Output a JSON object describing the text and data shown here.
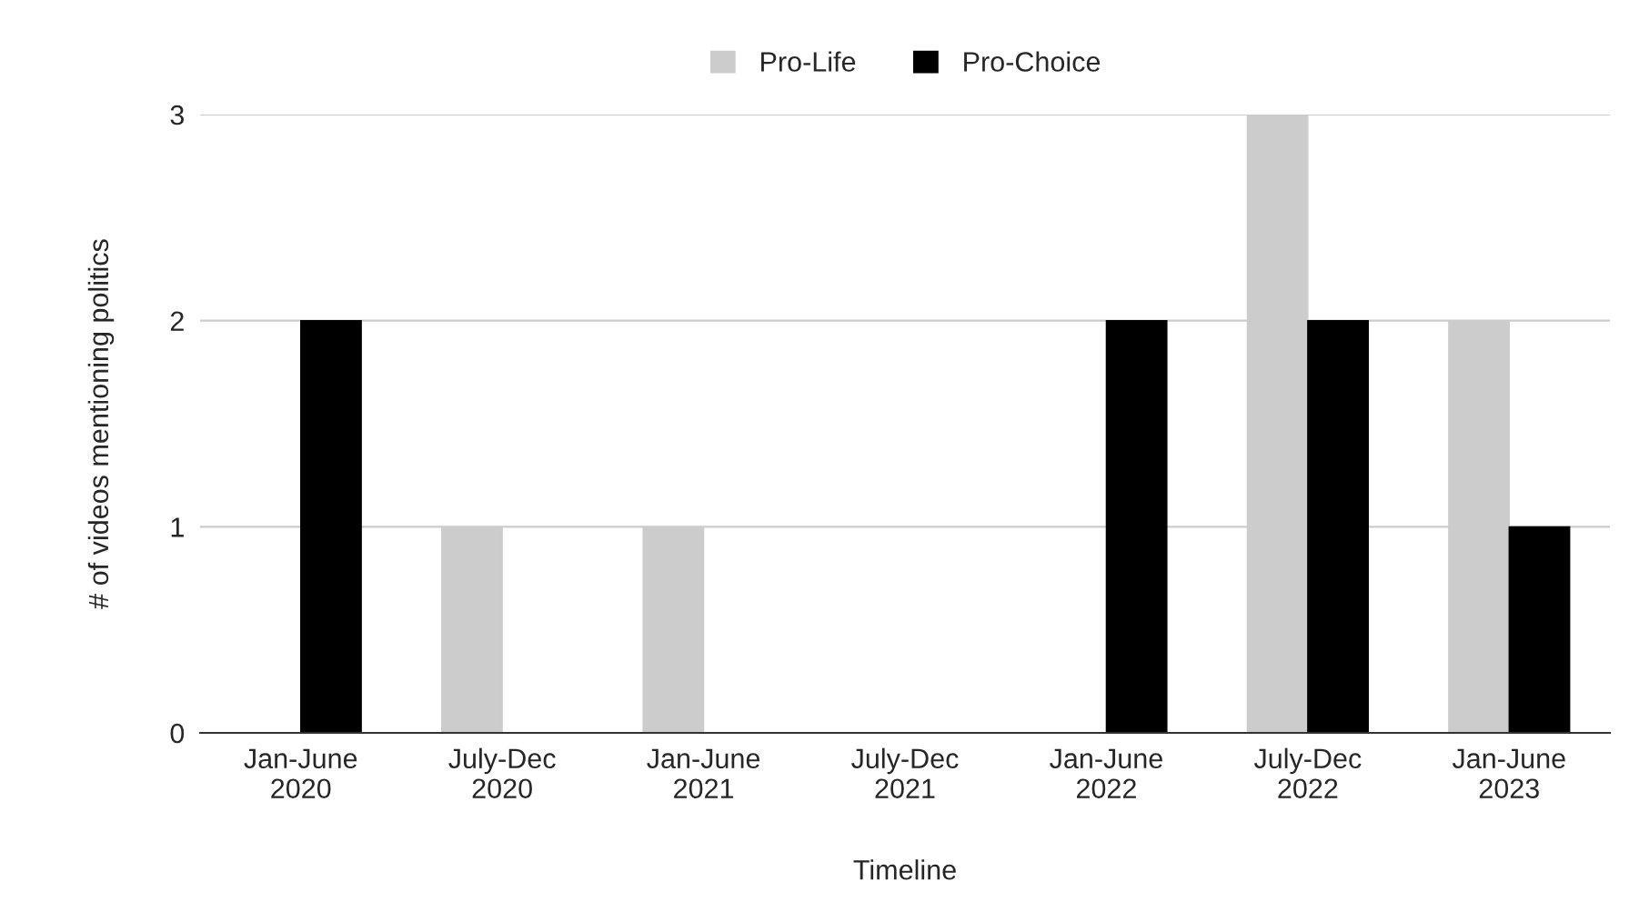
{
  "chart_data": {
    "type": "bar",
    "categories": [
      "Jan-June\n2020",
      "July-Dec\n2020",
      "Jan-June\n2021",
      "July-Dec\n2021",
      "Jan-June\n2022",
      "July-Dec\n2022",
      "Jan-June\n2023"
    ],
    "series": [
      {
        "name": "Pro-Life",
        "color": "#cccccc",
        "values": [
          0,
          1,
          1,
          0,
          0,
          3,
          2
        ]
      },
      {
        "name": "Pro-Choice",
        "color": "#000000",
        "values": [
          2,
          0,
          0,
          0,
          2,
          2,
          1
        ]
      }
    ],
    "xlabel": "Timeline",
    "ylabel": "# of videos mentioning politics",
    "ylim": [
      0,
      3
    ],
    "yticks": [
      0,
      1,
      2,
      3
    ],
    "grid": "y",
    "legend": "top"
  }
}
